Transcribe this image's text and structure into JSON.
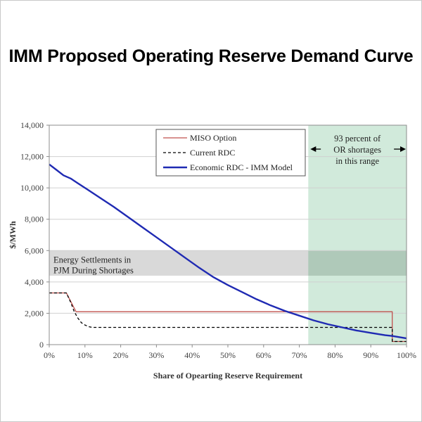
{
  "page": {
    "title": "IMM Proposed Operating Reserve Demand Curve"
  },
  "chart_data": {
    "type": "line",
    "title": "IMM Proposed Operating Reserve Demand Curve",
    "xlabel": "Share of Opearting Reserve Requirement",
    "ylabel": "$/MWh",
    "xlim": [
      0,
      100
    ],
    "ylim": [
      0,
      14000
    ],
    "x_ticks": [
      0,
      10,
      20,
      30,
      40,
      50,
      60,
      70,
      80,
      90,
      100
    ],
    "x_tick_labels": [
      "0%",
      "10%",
      "20%",
      "30%",
      "40%",
      "50%",
      "60%",
      "70%",
      "80%",
      "90%",
      "100%"
    ],
    "y_ticks": [
      0,
      2000,
      4000,
      6000,
      8000,
      10000,
      12000,
      14000
    ],
    "y_tick_labels": [
      "0",
      "2,000",
      "4,000",
      "6,000",
      "8,000",
      "10,000",
      "12,000",
      "14,000"
    ],
    "grid": "horizontal",
    "legend_position": "top-center",
    "series": [
      {
        "name": "MISO Option",
        "style": "solid",
        "color": "#c0504d",
        "x": [
          0,
          4.8,
          7.5,
          96,
          96,
          100
        ],
        "y": [
          3300,
          3300,
          2100,
          2100,
          200,
          200
        ]
      },
      {
        "name": "Current RDC",
        "style": "dashed",
        "color": "#000000",
        "x": [
          0,
          4.8,
          6,
          7,
          8,
          9,
          10,
          11,
          12,
          13,
          96,
          96,
          100
        ],
        "y": [
          3300,
          3300,
          2700,
          2100,
          1700,
          1400,
          1250,
          1150,
          1100,
          1100,
          1100,
          200,
          200
        ]
      },
      {
        "name": "Economic RDC - IMM Model",
        "style": "solid",
        "color": "#1f2ab3",
        "x": [
          0,
          2,
          4,
          6,
          8,
          10,
          14,
          18,
          22,
          26,
          30,
          34,
          38,
          42,
          46,
          50,
          54,
          58,
          62,
          66,
          70,
          74,
          78,
          82,
          86,
          90,
          94,
          96,
          100
        ],
        "y": [
          11500,
          11150,
          10800,
          10600,
          10300,
          10000,
          9400,
          8800,
          8150,
          7500,
          6850,
          6200,
          5550,
          4900,
          4300,
          3800,
          3350,
          2900,
          2500,
          2150,
          1850,
          1550,
          1300,
          1100,
          900,
          750,
          600,
          550,
          400
        ]
      }
    ],
    "bands": [
      {
        "label": "Energy Settlements in PJM During Shortages",
        "axis": "y",
        "from": 4400,
        "to": 6000,
        "color": "#d9d9d9"
      },
      {
        "label": "93 percent of OR shortages in this range",
        "axis": "x",
        "from": 72.5,
        "to": 100,
        "color": "#d1eadb"
      }
    ],
    "annotations": [
      {
        "text": "Energy Settlements in PJM During Shortages",
        "lines": [
          "Energy Settlements in",
          "PJM During Shortages"
        ]
      },
      {
        "text": "93 percent of OR shortages in this range",
        "lines": [
          "93 percent of",
          "OR shortages",
          "in this range"
        ]
      }
    ]
  }
}
